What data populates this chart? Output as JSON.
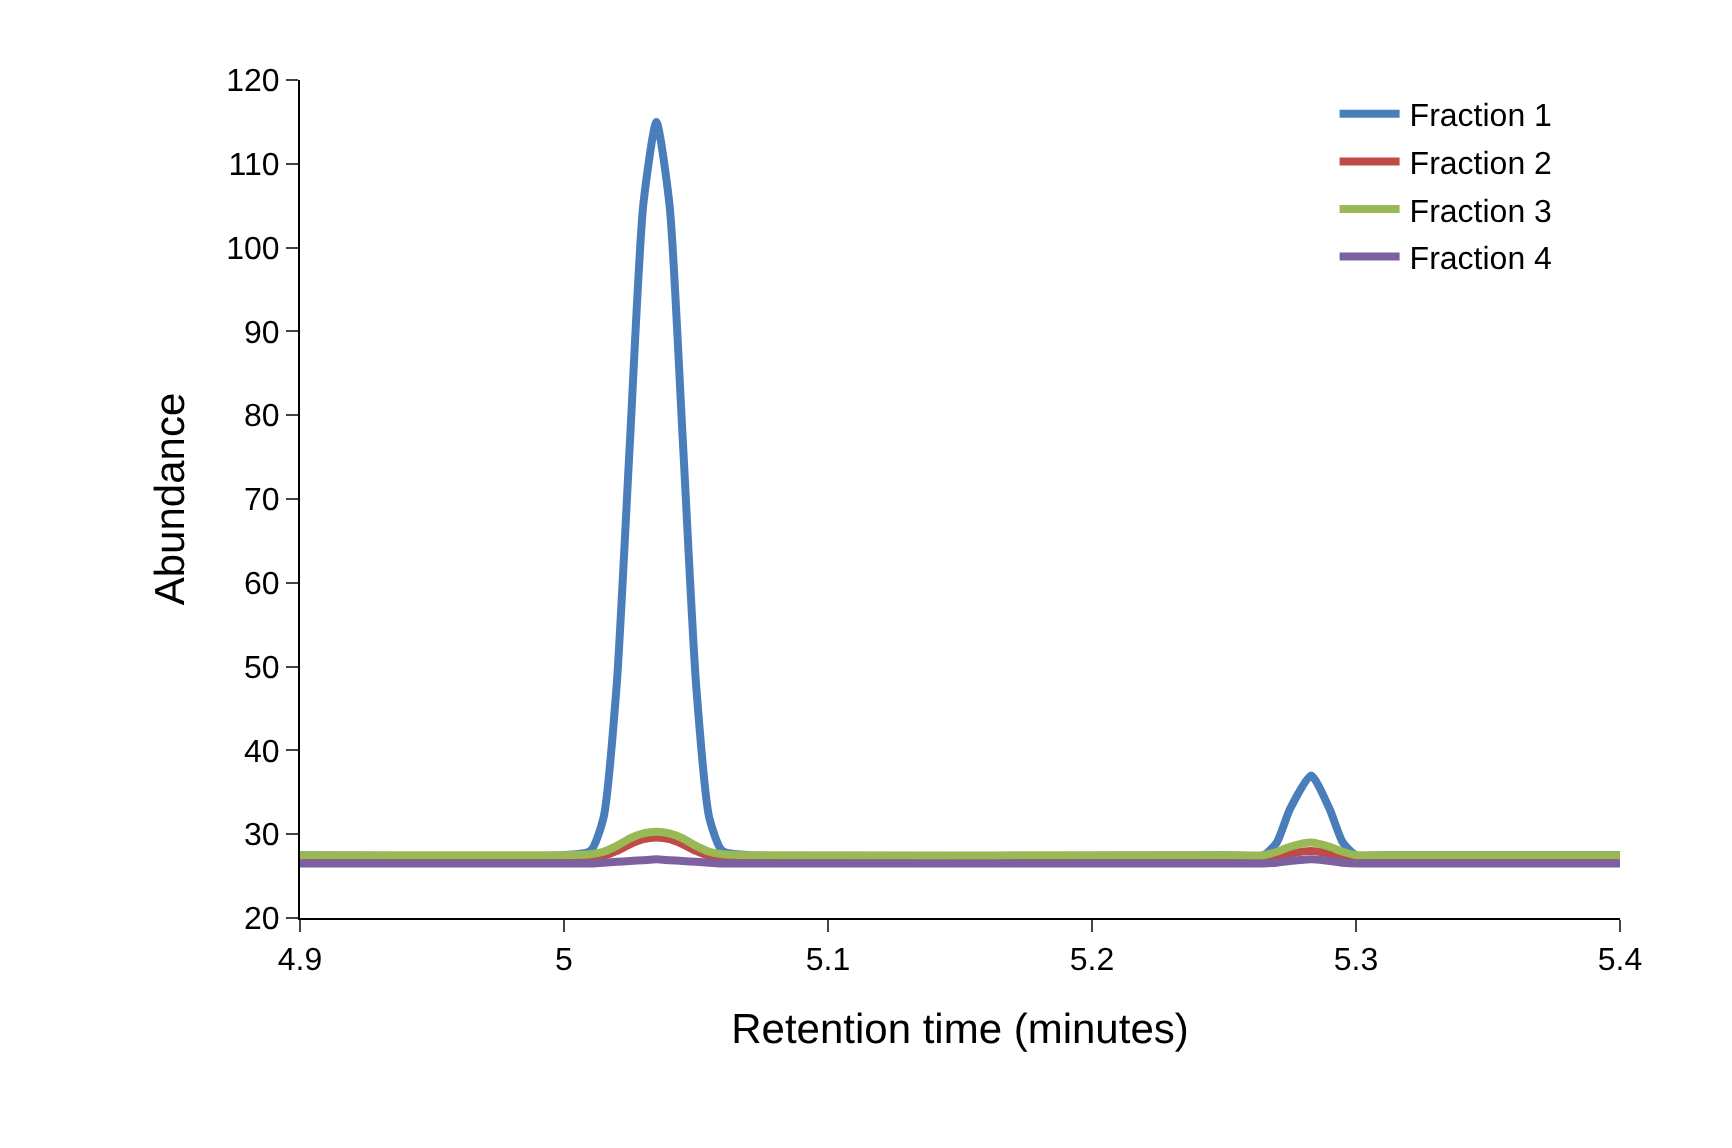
{
  "chart_data": {
    "type": "line",
    "xlabel": "Retention time (minutes)",
    "ylabel": "Abundance",
    "x": [
      4.9,
      5.0,
      5.01,
      5.015,
      5.02,
      5.025,
      5.03,
      5.035,
      5.04,
      5.045,
      5.05,
      5.055,
      5.06,
      5.07,
      5.25,
      5.265,
      5.27,
      5.275,
      5.283,
      5.29,
      5.295,
      5.3,
      5.31,
      5.4
    ],
    "series": [
      {
        "name": "Fraction 1",
        "color": "#4a7ebb",
        "values": [
          27.5,
          27.5,
          28,
          32,
          48,
          77,
          105,
          115,
          105,
          77,
          48,
          32,
          28,
          27.5,
          27.5,
          27.5,
          29,
          33,
          37,
          33,
          29,
          27.5,
          27.5,
          27.5
        ]
      },
      {
        "name": "Fraction 2",
        "color": "#be4b48",
        "values": [
          27,
          27,
          27.1,
          27.4,
          28,
          28.8,
          29.4,
          29.6,
          29.4,
          28.8,
          28,
          27.4,
          27.1,
          27,
          27,
          27,
          27.3,
          27.7,
          28,
          27.7,
          27.3,
          27,
          27,
          27
        ]
      },
      {
        "name": "Fraction 3",
        "color": "#98b954",
        "values": [
          27.5,
          27.5,
          27.6,
          27.9,
          28.6,
          29.5,
          30.1,
          30.3,
          30.1,
          29.5,
          28.6,
          27.9,
          27.6,
          27.5,
          27.5,
          27.5,
          27.9,
          28.5,
          29,
          28.5,
          27.9,
          27.5,
          27.5,
          27.5
        ]
      },
      {
        "name": "Fraction 4",
        "color": "#7d60a0",
        "values": [
          26.5,
          26.5,
          26.5,
          26.6,
          26.7,
          26.8,
          26.9,
          27,
          26.9,
          26.8,
          26.7,
          26.6,
          26.5,
          26.5,
          26.5,
          26.5,
          26.6,
          26.8,
          27,
          26.8,
          26.6,
          26.5,
          26.5,
          26.5
        ]
      }
    ],
    "xlim": [
      4.9,
      5.4
    ],
    "xticks": [
      4.9,
      5,
      5.1,
      5.2,
      5.3,
      5.4
    ],
    "ylim": [
      20,
      120
    ],
    "yticks": [
      20,
      30,
      40,
      50,
      60,
      70,
      80,
      90,
      100,
      110,
      120
    ],
    "legend": "top right",
    "line_style": "solid",
    "marker": "none"
  }
}
